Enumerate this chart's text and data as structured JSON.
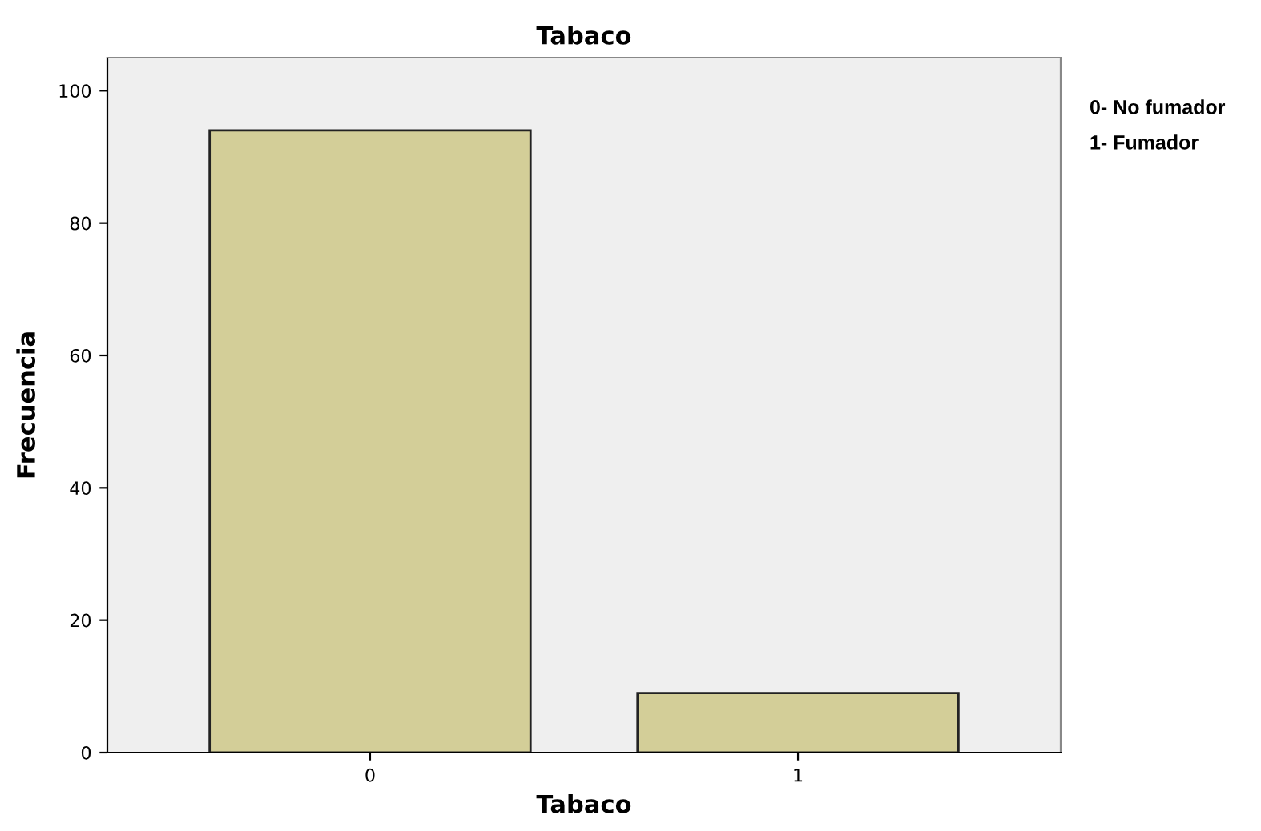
{
  "chart_data": {
    "type": "bar",
    "title": "Tabaco",
    "xlabel": "Tabaco",
    "ylabel": "Frecuencia",
    "categories": [
      "0",
      "1"
    ],
    "values": [
      94,
      9
    ],
    "color": "#d3ce98",
    "ylim": [
      0,
      105
    ],
    "yticks": [
      0,
      20,
      40,
      60,
      80,
      100
    ],
    "grid": false,
    "legend": false,
    "annotations": [
      "0- No fumador",
      "1- Fumador"
    ]
  }
}
